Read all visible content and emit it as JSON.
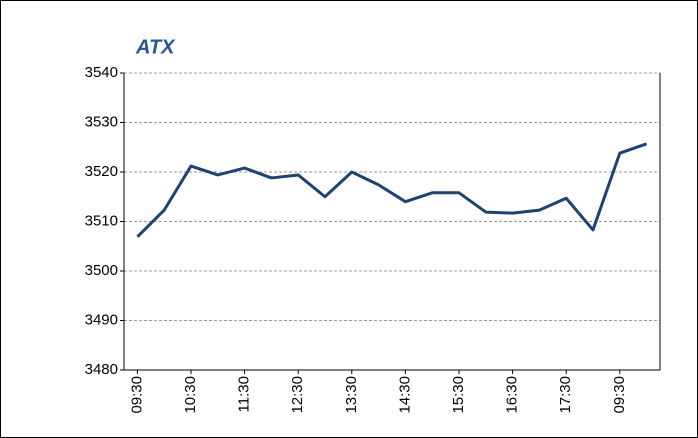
{
  "chart_data": {
    "type": "line",
    "title": "ATX",
    "categories": [
      "09:30",
      null,
      "10:30",
      null,
      "11:30",
      null,
      "12:30",
      null,
      "13:30",
      null,
      "14:30",
      null,
      "15:30",
      null,
      "16:30",
      null,
      "17:30",
      null,
      "09:30",
      null
    ],
    "series": [
      {
        "name": "ATX",
        "color": "#1f4273",
        "values": [
          3506.9,
          3512.3,
          3521.2,
          3519.4,
          3520.8,
          3518.8,
          3519.4,
          3515.0,
          3520.0,
          3517.4,
          3514.0,
          3515.8,
          3515.8,
          3511.9,
          3511.7,
          3512.3,
          3514.7,
          3508.3,
          3523.8,
          3525.7
        ]
      }
    ],
    "ylim": [
      3480,
      3540
    ],
    "yticks": [
      3480,
      3490,
      3500,
      3510,
      3520,
      3530,
      3540
    ],
    "grid": true
  }
}
